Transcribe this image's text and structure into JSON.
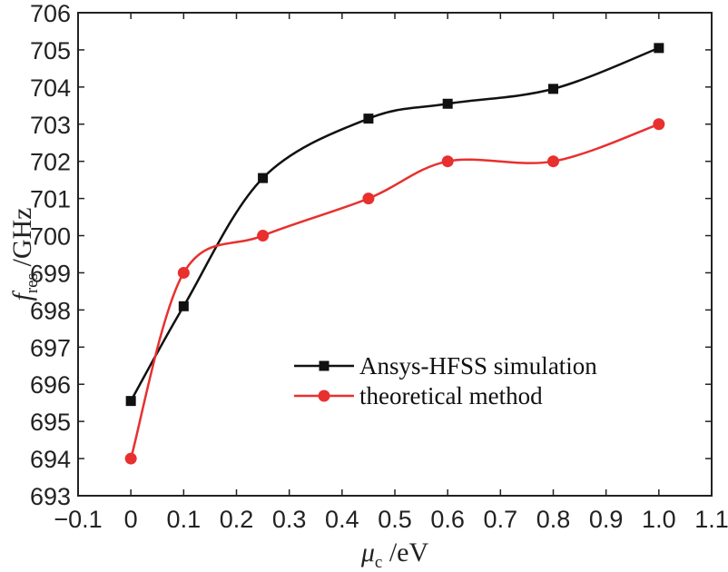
{
  "chart_data": {
    "type": "line",
    "title": "",
    "xlabel": {
      "symbol": "μ",
      "subscript": "c",
      "unit": " /eV"
    },
    "ylabel": {
      "symbol": "f",
      "subscript": "res",
      "unit": " /GHz"
    },
    "xlim": [
      -0.1,
      1.1
    ],
    "ylim": [
      693,
      706
    ],
    "xticks": [
      -0.1,
      0,
      0.1,
      0.2,
      0.3,
      0.4,
      0.5,
      0.6,
      0.7,
      0.8,
      0.9,
      1.0,
      1.1
    ],
    "xtick_labels": [
      "−0.1",
      "0",
      "0.1",
      "0.2",
      "0.3",
      "0.4",
      "0.5",
      "0.6",
      "0.7",
      "0.8",
      "0.9",
      "1.0",
      "1.1"
    ],
    "yticks": [
      693,
      694,
      695,
      696,
      697,
      698,
      699,
      700,
      701,
      702,
      703,
      704,
      705,
      706
    ],
    "grid": false,
    "legend_position": "center-right",
    "series": [
      {
        "name": "Ansys-HFSS simulation",
        "color": "#111111",
        "marker": "square",
        "x": [
          0,
          0.1,
          0.25,
          0.45,
          0.6,
          0.8,
          1.0
        ],
        "y": [
          695.55,
          698.1,
          701.55,
          703.15,
          703.55,
          703.95,
          705.05
        ]
      },
      {
        "name": "theoretical method",
        "color": "#e8302e",
        "marker": "circle",
        "x": [
          0,
          0.1,
          0.25,
          0.45,
          0.6,
          0.8,
          1.0
        ],
        "y": [
          694.0,
          699.0,
          700.0,
          701.0,
          702.0,
          702.0,
          703.0
        ]
      }
    ]
  }
}
